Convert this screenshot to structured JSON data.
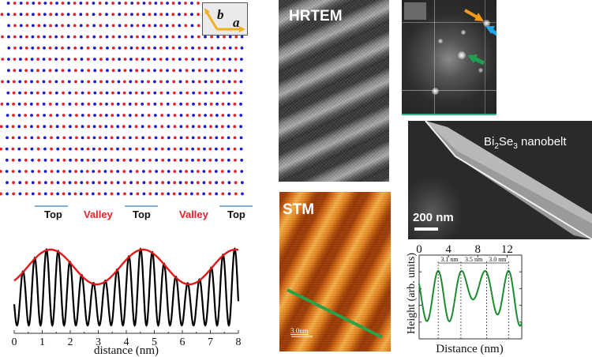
{
  "lattice": {
    "inset": {
      "axis_a": "a",
      "axis_b": "b",
      "arrow_color": "#f0b020"
    },
    "dot_colors": {
      "primary": "#1a1ad0",
      "secondary": "#e8202a"
    },
    "region_labels": [
      {
        "text": "Top",
        "kind": "top"
      },
      {
        "text": "Valley",
        "kind": "valley"
      },
      {
        "text": "Top",
        "kind": "top"
      },
      {
        "text": "Valley",
        "kind": "valley"
      },
      {
        "text": "Top",
        "kind": "top"
      }
    ]
  },
  "images": {
    "hrtem": {
      "label": "HRTEM"
    },
    "fft": {
      "arrows": [
        {
          "name": "orange",
          "color": "#f39a1c"
        },
        {
          "name": "blue",
          "color": "#1fa7e6"
        },
        {
          "name": "green",
          "color": "#1fa050"
        }
      ]
    },
    "sem": {
      "label_main": "Bi",
      "sub1": "2",
      "mid": "Se",
      "sub2": "3",
      "label_tail": " nanobelt",
      "scale": "200 nm"
    },
    "stm": {
      "label": "STM",
      "scale": "3.0nm",
      "line_color": "#2aa048"
    }
  },
  "chart_data": [
    {
      "type": "line",
      "title": "",
      "xlabel": "distance (nm)",
      "ylabel": "",
      "xlim": [
        0,
        8
      ],
      "x_ticks": [
        "0",
        "1",
        "2",
        "3",
        "4",
        "5",
        "6",
        "7",
        "8"
      ],
      "series": [
        {
          "name": "profile",
          "color": "#000000",
          "description": "fast oscillation, period ~0.42 nm, modulated amplitude"
        },
        {
          "name": "envelope",
          "color": "#e01818",
          "description": "sinusoidal envelope, period ~3.3 nm, maxima near 1.3 and 4.6 nm, minima near 3.0 and 6.3 nm"
        }
      ],
      "envelope_peaks_nm": [
        1.3,
        4.6,
        8.0
      ],
      "envelope_valleys_nm": [
        3.0,
        6.3
      ]
    },
    {
      "type": "line",
      "title": "",
      "xlabel": "Distance (nm)",
      "ylabel": "Height (arb. units)",
      "xlim": [
        0,
        14
      ],
      "x_ticks": [
        "0",
        "4",
        "8",
        "12"
      ],
      "series": [
        {
          "name": "STM line profile",
          "color": "#1e8a2e"
        }
      ],
      "peak_positions_nm": [
        2.6,
        5.7,
        9.2,
        12.2
      ],
      "annotations": [
        "3.1 nm",
        "3.5 nm",
        "3.0 nm"
      ]
    }
  ]
}
